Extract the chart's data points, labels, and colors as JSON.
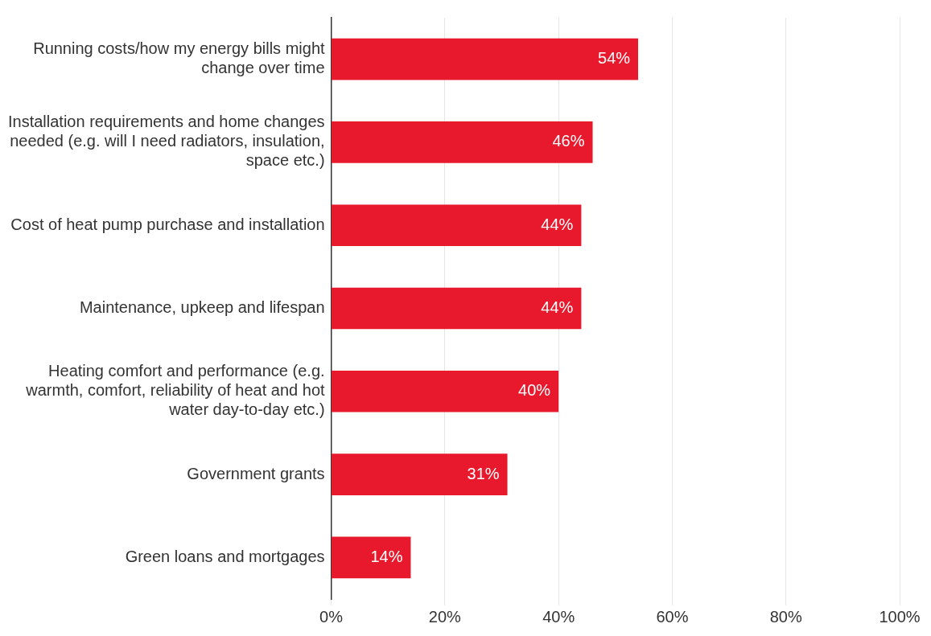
{
  "chart_data": {
    "type": "bar",
    "orientation": "horizontal",
    "categories": [
      "Running costs/how my energy bills might change over time",
      "Installation requirements and home changes needed (e.g. will I need radiators, insulation, space etc.)",
      "Cost of heat pump purchase and installation",
      "Maintenance, upkeep and lifespan",
      "Heating comfort and performance (e.g. warmth, comfort, reliability of heat and hot water day-to-day etc.)",
      "Government grants",
      "Green loans and mortgages"
    ],
    "values": [
      54,
      46,
      44,
      44,
      40,
      31,
      14
    ],
    "value_labels": [
      "54%",
      "46%",
      "44%",
      "44%",
      "40%",
      "31%",
      "14%"
    ],
    "color": "#e8192c",
    "xlim": [
      0,
      100
    ],
    "xticks": [
      {
        "value": 0,
        "label": "0%"
      },
      {
        "value": 20,
        "label": "20%"
      },
      {
        "value": 40,
        "label": "40%"
      },
      {
        "value": 60,
        "label": "60%"
      },
      {
        "value": 80,
        "label": "80%"
      },
      {
        "value": 100,
        "label": "100%"
      }
    ],
    "grid": "x",
    "legend": false
  }
}
